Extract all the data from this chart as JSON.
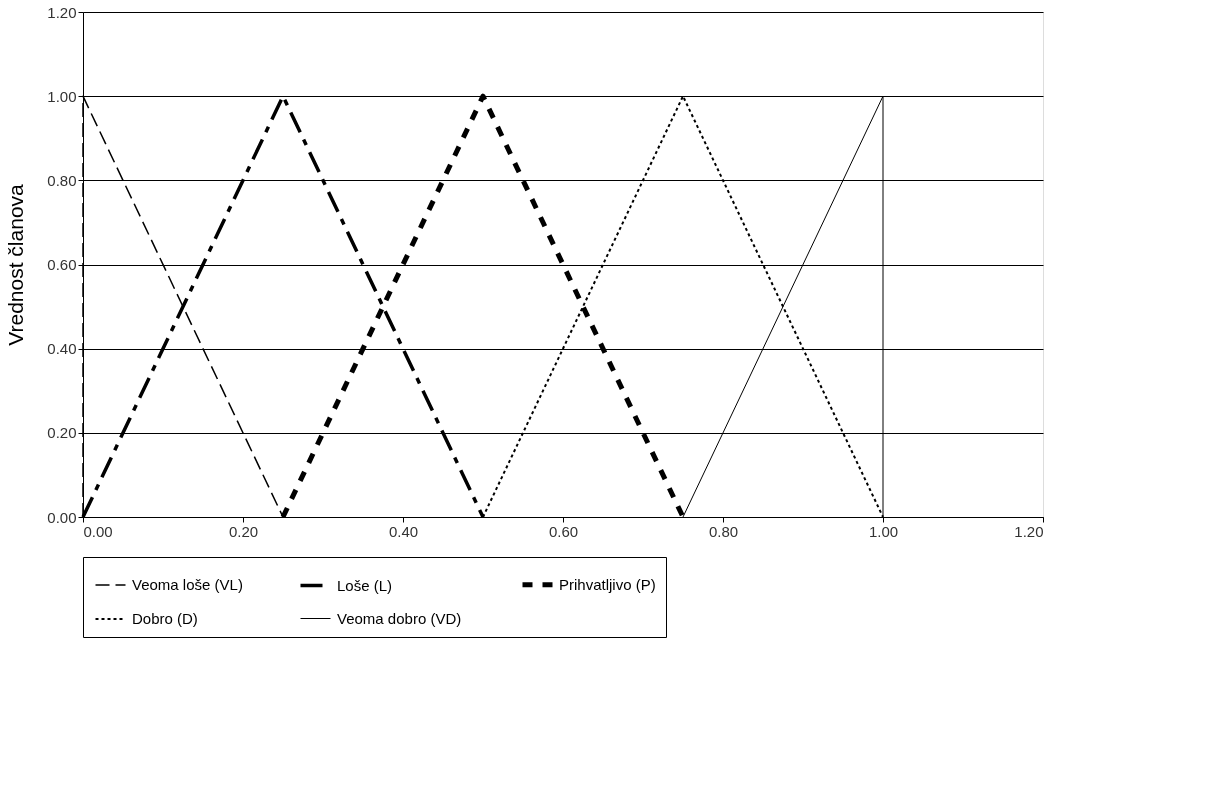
{
  "chart_data": {
    "type": "line",
    "ylabel": "Vrednost članova",
    "xlim": [
      0,
      1.2
    ],
    "ylim": [
      0,
      1.2
    ],
    "xticks": [
      {
        "value": 0,
        "label": "0.00"
      },
      {
        "value": 0.2,
        "label": "0.20"
      },
      {
        "value": 0.4,
        "label": "0.40"
      },
      {
        "value": 0.6,
        "label": "0.60"
      },
      {
        "value": 0.8,
        "label": "0.80"
      },
      {
        "value": 1,
        "label": "1.00"
      },
      {
        "value": 1.2,
        "label": "1.20"
      }
    ],
    "yticks": [
      {
        "value": 0,
        "label": "0.00"
      },
      {
        "value": 0.2,
        "label": "0.20"
      },
      {
        "value": 0.4,
        "label": "0.40"
      },
      {
        "value": 0.6,
        "label": "0.60"
      },
      {
        "value": 0.8,
        "label": "0.80"
      },
      {
        "value": 1,
        "label": "1.00"
      },
      {
        "value": 1.2,
        "label": "1.20"
      }
    ],
    "grid": "y",
    "legend": "bottom",
    "marker": "none",
    "series": [
      {
        "name": "Veoma loše (VL)",
        "color": "#000000",
        "line_style": "dashed",
        "x": [
          0,
          0,
          0.25
        ],
        "values": [
          0,
          1,
          0
        ]
      },
      {
        "name": "Loše (L)",
        "color": "#000000",
        "line_style": "dashed",
        "x": [
          0,
          0.25,
          0.5
        ],
        "values": [
          0,
          1,
          0
        ]
      },
      {
        "name": "Prihvatljivo (P)",
        "color": "#000000",
        "line_style": "dashed",
        "x": [
          0.25,
          0.5,
          0.75
        ],
        "values": [
          0,
          1,
          0
        ]
      },
      {
        "name": "Dobro (D)",
        "color": "#000000",
        "line_style": "dotted",
        "x": [
          0.5,
          0.75,
          1
        ],
        "values": [
          0,
          1,
          0
        ]
      },
      {
        "name": "Veoma dobro (VD)",
        "color": "#000000",
        "line_style": "solid",
        "x": [
          0.75,
          1,
          1
        ],
        "values": [
          0,
          1,
          0
        ]
      }
    ]
  }
}
